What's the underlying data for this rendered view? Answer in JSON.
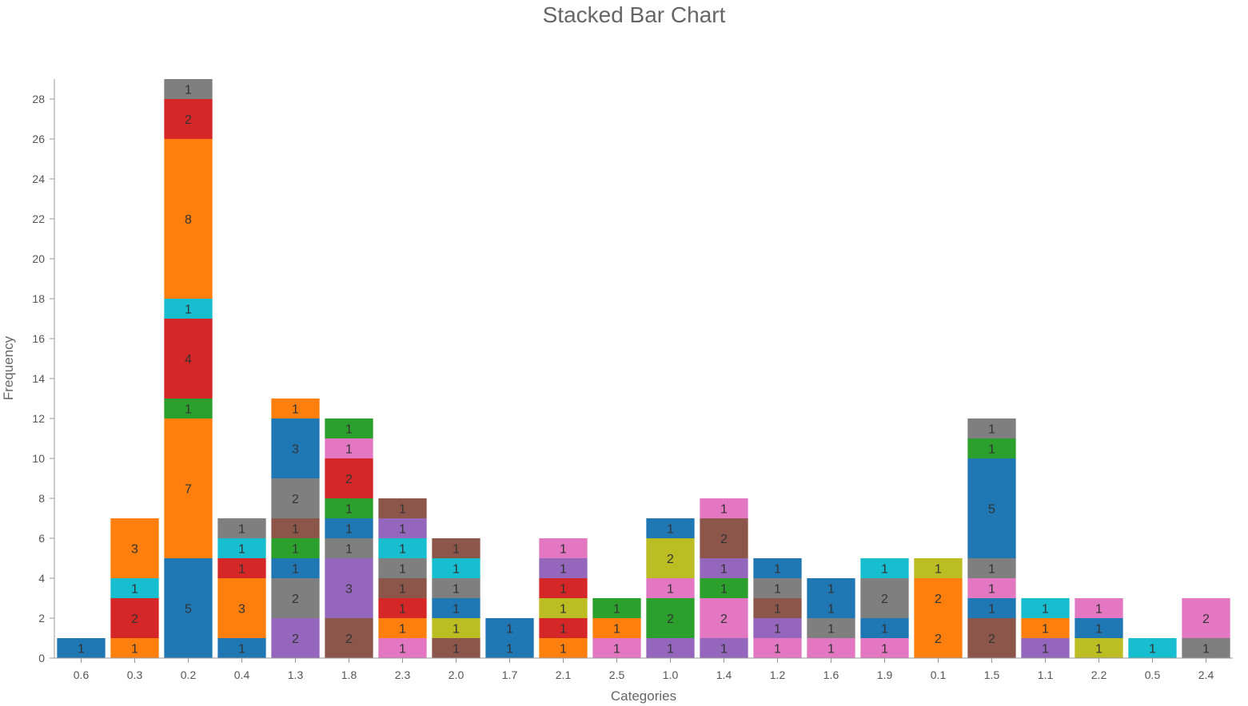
{
  "chart_data": {
    "type": "bar",
    "stacked": true,
    "title": "Stacked Bar Chart",
    "xlabel": "Categories",
    "ylabel": "Frequency",
    "ylim": [
      0,
      29
    ],
    "y_ticks": [
      0,
      2,
      4,
      6,
      8,
      10,
      12,
      14,
      16,
      18,
      20,
      22,
      24,
      26,
      28
    ],
    "grid": false,
    "legend": "none",
    "categories": [
      "0.6",
      "0.3",
      "0.2",
      "0.4",
      "1.3",
      "1.8",
      "2.3",
      "2.0",
      "1.7",
      "2.1",
      "2.5",
      "1.0",
      "1.4",
      "1.2",
      "1.6",
      "1.9",
      "0.1",
      "1.5",
      "1.1",
      "2.2",
      "0.5",
      "2.4"
    ],
    "bars": [
      {
        "category": "0.6",
        "segments": [
          {
            "value": 1,
            "color": "#1f77b4"
          }
        ]
      },
      {
        "category": "0.3",
        "segments": [
          {
            "value": 1,
            "color": "#ff7f0e"
          },
          {
            "value": 2,
            "color": "#d62728"
          },
          {
            "value": 1,
            "color": "#17becf"
          },
          {
            "value": 3,
            "color": "#ff7f0e"
          }
        ]
      },
      {
        "category": "0.2",
        "segments": [
          {
            "value": 5,
            "color": "#1f77b4"
          },
          {
            "value": 7,
            "color": "#ff7f0e"
          },
          {
            "value": 1,
            "color": "#2ca02c"
          },
          {
            "value": 4,
            "color": "#d62728"
          },
          {
            "value": 1,
            "color": "#17becf"
          },
          {
            "value": 8,
            "color": "#ff7f0e"
          },
          {
            "value": 2,
            "color": "#d62728"
          },
          {
            "value": 1,
            "color": "#7f7f7f"
          }
        ]
      },
      {
        "category": "0.4",
        "segments": [
          {
            "value": 1,
            "color": "#1f77b4"
          },
          {
            "value": 3,
            "color": "#ff7f0e"
          },
          {
            "value": 1,
            "color": "#d62728"
          },
          {
            "value": 1,
            "color": "#17becf"
          },
          {
            "value": 1,
            "color": "#7f7f7f"
          }
        ]
      },
      {
        "category": "1.3",
        "segments": [
          {
            "value": 2,
            "color": "#9467bd"
          },
          {
            "value": 2,
            "color": "#7f7f7f"
          },
          {
            "value": 1,
            "color": "#1f77b4"
          },
          {
            "value": 1,
            "color": "#2ca02c"
          },
          {
            "value": 1,
            "color": "#8c564b"
          },
          {
            "value": 2,
            "color": "#7f7f7f"
          },
          {
            "value": 3,
            "color": "#1f77b4"
          },
          {
            "value": 1,
            "color": "#ff7f0e"
          }
        ]
      },
      {
        "category": "1.8",
        "segments": [
          {
            "value": 2,
            "color": "#8c564b"
          },
          {
            "value": 3,
            "color": "#9467bd"
          },
          {
            "value": 1,
            "color": "#7f7f7f"
          },
          {
            "value": 1,
            "color": "#1f77b4"
          },
          {
            "value": 1,
            "color": "#2ca02c"
          },
          {
            "value": 2,
            "color": "#d62728"
          },
          {
            "value": 1,
            "color": "#e377c2"
          },
          {
            "value": 1,
            "color": "#2ca02c"
          }
        ]
      },
      {
        "category": "2.3",
        "segments": [
          {
            "value": 1,
            "color": "#e377c2"
          },
          {
            "value": 1,
            "color": "#ff7f0e"
          },
          {
            "value": 1,
            "color": "#d62728"
          },
          {
            "value": 1,
            "color": "#8c564b"
          },
          {
            "value": 1,
            "color": "#7f7f7f"
          },
          {
            "value": 1,
            "color": "#17becf"
          },
          {
            "value": 1,
            "color": "#9467bd"
          },
          {
            "value": 1,
            "color": "#8c564b"
          }
        ]
      },
      {
        "category": "2.0",
        "segments": [
          {
            "value": 1,
            "color": "#8c564b"
          },
          {
            "value": 1,
            "color": "#bcbd22"
          },
          {
            "value": 1,
            "color": "#1f77b4"
          },
          {
            "value": 1,
            "color": "#7f7f7f"
          },
          {
            "value": 1,
            "color": "#17becf"
          },
          {
            "value": 1,
            "color": "#8c564b"
          }
        ]
      },
      {
        "category": "1.7",
        "segments": [
          {
            "value": 1,
            "color": "#1f77b4"
          },
          {
            "value": 1,
            "color": "#1f77b4"
          }
        ]
      },
      {
        "category": "2.1",
        "segments": [
          {
            "value": 1,
            "color": "#ff7f0e"
          },
          {
            "value": 1,
            "color": "#d62728"
          },
          {
            "value": 1,
            "color": "#bcbd22"
          },
          {
            "value": 1,
            "color": "#d62728"
          },
          {
            "value": 1,
            "color": "#9467bd"
          },
          {
            "value": 1,
            "color": "#e377c2"
          }
        ]
      },
      {
        "category": "2.5",
        "segments": [
          {
            "value": 1,
            "color": "#e377c2"
          },
          {
            "value": 1,
            "color": "#ff7f0e"
          },
          {
            "value": 1,
            "color": "#2ca02c"
          }
        ]
      },
      {
        "category": "1.0",
        "segments": [
          {
            "value": 1,
            "color": "#9467bd"
          },
          {
            "value": 2,
            "color": "#2ca02c"
          },
          {
            "value": 1,
            "color": "#e377c2"
          },
          {
            "value": 2,
            "color": "#bcbd22"
          },
          {
            "value": 1,
            "color": "#1f77b4"
          }
        ]
      },
      {
        "category": "1.4",
        "segments": [
          {
            "value": 1,
            "color": "#9467bd"
          },
          {
            "value": 2,
            "color": "#e377c2"
          },
          {
            "value": 1,
            "color": "#2ca02c"
          },
          {
            "value": 1,
            "color": "#9467bd"
          },
          {
            "value": 2,
            "color": "#8c564b"
          },
          {
            "value": 1,
            "color": "#e377c2"
          }
        ]
      },
      {
        "category": "1.2",
        "segments": [
          {
            "value": 1,
            "color": "#e377c2"
          },
          {
            "value": 1,
            "color": "#9467bd"
          },
          {
            "value": 1,
            "color": "#8c564b"
          },
          {
            "value": 1,
            "color": "#7f7f7f"
          },
          {
            "value": 1,
            "color": "#1f77b4"
          }
        ]
      },
      {
        "category": "1.6",
        "segments": [
          {
            "value": 1,
            "color": "#e377c2"
          },
          {
            "value": 1,
            "color": "#7f7f7f"
          },
          {
            "value": 1,
            "color": "#1f77b4"
          },
          {
            "value": 1,
            "color": "#1f77b4"
          }
        ]
      },
      {
        "category": "1.9",
        "segments": [
          {
            "value": 1,
            "color": "#e377c2"
          },
          {
            "value": 1,
            "color": "#1f77b4"
          },
          {
            "value": 2,
            "color": "#7f7f7f"
          },
          {
            "value": 1,
            "color": "#17becf"
          }
        ]
      },
      {
        "category": "0.1",
        "segments": [
          {
            "value": 2,
            "color": "#ff7f0e"
          },
          {
            "value": 2,
            "color": "#ff7f0e"
          },
          {
            "value": 1,
            "color": "#bcbd22"
          }
        ]
      },
      {
        "category": "1.5",
        "segments": [
          {
            "value": 2,
            "color": "#8c564b"
          },
          {
            "value": 1,
            "color": "#1f77b4"
          },
          {
            "value": 1,
            "color": "#e377c2"
          },
          {
            "value": 1,
            "color": "#7f7f7f"
          },
          {
            "value": 5,
            "color": "#1f77b4"
          },
          {
            "value": 1,
            "color": "#2ca02c"
          },
          {
            "value": 1,
            "color": "#7f7f7f"
          }
        ]
      },
      {
        "category": "1.1",
        "segments": [
          {
            "value": 1,
            "color": "#9467bd"
          },
          {
            "value": 1,
            "color": "#ff7f0e"
          },
          {
            "value": 1,
            "color": "#17becf"
          }
        ]
      },
      {
        "category": "2.2",
        "segments": [
          {
            "value": 1,
            "color": "#bcbd22"
          },
          {
            "value": 1,
            "color": "#1f77b4"
          },
          {
            "value": 1,
            "color": "#e377c2"
          }
        ]
      },
      {
        "category": "0.5",
        "segments": [
          {
            "value": 1,
            "color": "#17becf"
          }
        ]
      },
      {
        "category": "2.4",
        "segments": [
          {
            "value": 1,
            "color": "#7f7f7f"
          },
          {
            "value": 2,
            "color": "#e377c2"
          }
        ]
      }
    ]
  }
}
